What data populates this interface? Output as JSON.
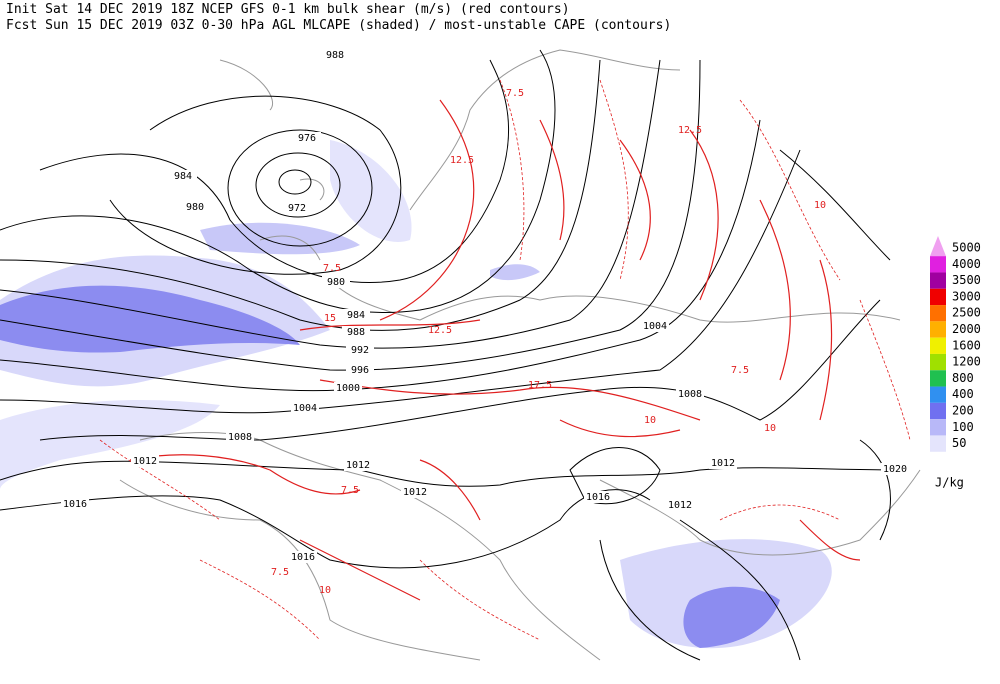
{
  "header": {
    "line1": "Init  Sat 14 DEC 2019 18Z  NCEP GFS 0-1 km bulk shear (m/s) (red contours)",
    "line2": "Fcst Sun 15 DEC 2019 03Z  0-30 hPa AGL MLCAPE (shaded) / most-unstable CAPE (contours)"
  },
  "pressure_labels": [
    988,
    976,
    984,
    980,
    972,
    980,
    984,
    988,
    992,
    996,
    1000,
    1004,
    1008,
    1012,
    1012,
    1012,
    1016,
    1016,
    1004,
    1008,
    1012,
    1016,
    1012,
    1020
  ],
  "shear_labels": [
    7.5,
    12.5,
    10,
    12.5,
    7.5,
    15,
    12.5,
    7.5,
    17.5,
    10,
    7.5,
    10,
    7.5,
    10
  ],
  "legend": {
    "unit": "J/kg",
    "levels": [
      {
        "value": 5000,
        "color": "#f0a0f0"
      },
      {
        "value": 4000,
        "color": "#e020e0"
      },
      {
        "value": 3500,
        "color": "#a000a0"
      },
      {
        "value": 3000,
        "color": "#f00000"
      },
      {
        "value": 2500,
        "color": "#ff7000"
      },
      {
        "value": 2000,
        "color": "#ffb000"
      },
      {
        "value": 1600,
        "color": "#f0f000"
      },
      {
        "value": 1200,
        "color": "#a0e000"
      },
      {
        "value": 800,
        "color": "#20c050"
      },
      {
        "value": 400,
        "color": "#3090f0"
      },
      {
        "value": 200,
        "color": "#7070f0"
      },
      {
        "value": 100,
        "color": "#b8b8f8"
      },
      {
        "value": 50,
        "color": "#e4e4fc"
      }
    ]
  }
}
